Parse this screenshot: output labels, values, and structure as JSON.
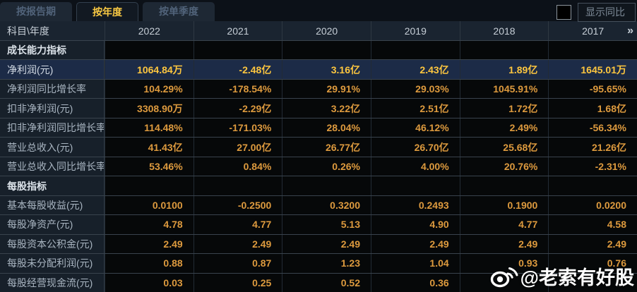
{
  "tabs": [
    {
      "label": "按报告期",
      "active": false
    },
    {
      "label": "按年度",
      "active": true
    },
    {
      "label": "按单季度",
      "active": false
    }
  ],
  "controls": {
    "show_yoy_label": "显示同比",
    "checkbox_checked": false
  },
  "table": {
    "corner_label": "科目\\年度",
    "years": [
      "2022",
      "2021",
      "2020",
      "2019",
      "2018",
      "2017"
    ],
    "more_icon": "»",
    "rows": [
      {
        "type": "section",
        "label": "成长能力指标",
        "values": [
          "",
          "",
          "",
          "",
          "",
          ""
        ]
      },
      {
        "type": "data",
        "highlight": true,
        "label": "净利润(元)",
        "values": [
          "1064.84万",
          "-2.48亿",
          "3.16亿",
          "2.43亿",
          "1.89亿",
          "1645.01万"
        ]
      },
      {
        "type": "data",
        "label": "净利润同比增长率",
        "values": [
          "104.29%",
          "-178.54%",
          "29.91%",
          "29.03%",
          "1045.91%",
          "-95.65%"
        ]
      },
      {
        "type": "data",
        "label": "扣非净利润(元)",
        "values": [
          "3308.90万",
          "-2.29亿",
          "3.22亿",
          "2.51亿",
          "1.72亿",
          "1.68亿"
        ]
      },
      {
        "type": "data",
        "label": "扣非净利润同比增长率",
        "values": [
          "114.48%",
          "-171.03%",
          "28.04%",
          "46.12%",
          "2.49%",
          "-56.34%"
        ]
      },
      {
        "type": "data",
        "label": "营业总收入(元)",
        "values": [
          "41.43亿",
          "27.00亿",
          "26.77亿",
          "26.70亿",
          "25.68亿",
          "21.26亿"
        ]
      },
      {
        "type": "data",
        "label": "营业总收入同比增长率",
        "values": [
          "53.46%",
          "0.84%",
          "0.26%",
          "4.00%",
          "20.76%",
          "-2.31%"
        ]
      },
      {
        "type": "section",
        "label": "每股指标",
        "values": [
          "",
          "",
          "",
          "",
          "",
          ""
        ]
      },
      {
        "type": "data",
        "label": "基本每股收益(元)",
        "values": [
          "0.0100",
          "-0.2500",
          "0.3200",
          "0.2493",
          "0.1900",
          "0.0200"
        ]
      },
      {
        "type": "data",
        "label": "每股净资产(元)",
        "values": [
          "4.78",
          "4.77",
          "5.13",
          "4.90",
          "4.77",
          "4.58"
        ]
      },
      {
        "type": "data",
        "label": "每股资本公积金(元)",
        "values": [
          "2.49",
          "2.49",
          "2.49",
          "2.49",
          "2.49",
          "2.49"
        ]
      },
      {
        "type": "data",
        "label": "每股未分配利润(元)",
        "values": [
          "0.88",
          "0.87",
          "1.23",
          "1.04",
          "0.93",
          "0.76"
        ]
      },
      {
        "type": "data",
        "label": "每股经营现金流(元)",
        "values": [
          "0.03",
          "0.25",
          "0.52",
          "0.36",
          "",
          ""
        ]
      }
    ]
  },
  "watermark": {
    "text": "@老索有好股",
    "icon": "weibo-icon"
  },
  "colors": {
    "accent_gold": "#f8c843",
    "value_orange": "#dd9a3e",
    "highlight_value": "#fdc63f",
    "highlight_row_bg": "#1c2b47",
    "label_col_bg": "#17202a",
    "cell_bg": "#060809",
    "header_bg": "#1a2430",
    "grid_line": "#39434d",
    "watermark_white": "#ffffff"
  }
}
